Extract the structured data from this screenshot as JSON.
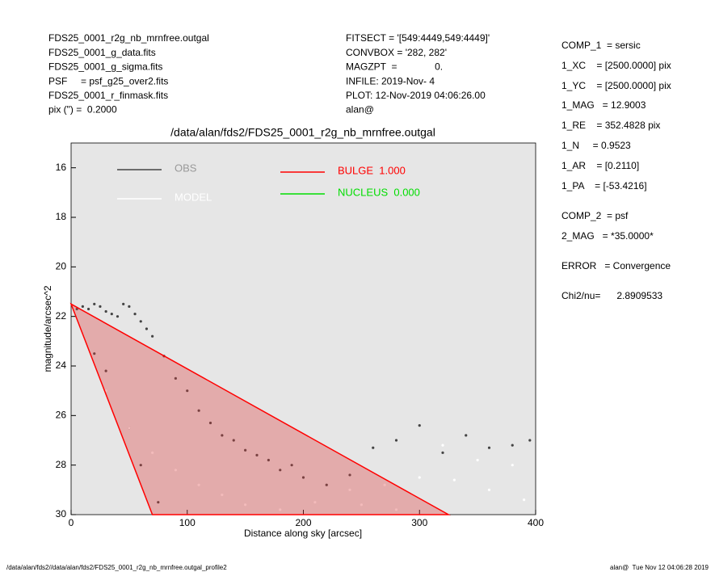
{
  "info": {
    "left": [
      "FDS25_0001_r2g_nb_mrnfree.outgal",
      "FDS25_0001_g_data.fits",
      "FDS25_0001_g_sigma.fits",
      "PSF     = psf_g25_over2.fits",
      "FDS25_0001_r_finmask.fits",
      "pix (\") =  0.2000"
    ],
    "middle": [
      "FITSECT = '[549:4449,549:4449]'",
      "CONVBOX = '282, 282'",
      "MAGZPT  =              0.",
      "INFILE: 2019-Nov- 4",
      "PLOT: 12-Nov-2019 04:06:26.00",
      "alan@"
    ],
    "right": [
      "COMP_1  = sersic",
      "1_XC    = [2500.0000] pix",
      "1_YC    = [2500.0000] pix",
      "1_MAG   = 12.9003",
      "1_RE    = 352.4828 pix",
      "1_N     = 0.9523",
      "1_AR    = [0.2110]",
      "1_PA    = [-53.4216]",
      "COMP_2  = psf",
      "2_MAG   = *35.0000*",
      "ERROR   = Convergence",
      "Chi2/nu=      2.8909533"
    ],
    "footer_left": "/data/alan/fds2//data/alan/fds2/FDS25_0001_r2g_nb_mrnfree.outgal_profile2",
    "footer_right": "alan@  Tue Nov 12 04:06:28 2019"
  },
  "chart_data": {
    "type": "scatter",
    "title": "/data/alan/fds2/FDS25_0001_r2g_nb_mrnfree.outgal",
    "x_label": "Distance along sky [arcsec]",
    "y_label": "magnitude/arcsec^2",
    "xlim": [
      0,
      400
    ],
    "xticks": [
      0,
      100,
      200,
      300,
      400
    ],
    "ylim": [
      30,
      15
    ],
    "yticks": [
      16,
      18,
      20,
      22,
      24,
      26,
      28,
      30
    ],
    "series": [
      {
        "name": "OBS",
        "color": "#444444",
        "x": [
          5,
          10,
          15,
          20,
          25,
          30,
          35,
          40,
          45,
          50,
          55,
          60,
          65,
          70,
          80,
          90,
          100,
          110,
          120,
          130,
          140,
          150,
          160,
          170,
          180,
          190,
          200,
          220,
          240,
          260,
          280,
          300,
          320,
          340,
          360,
          380,
          395,
          20,
          30,
          50,
          60,
          75
        ],
        "values": [
          21.7,
          21.6,
          21.7,
          21.5,
          21.6,
          21.8,
          21.9,
          22.0,
          21.5,
          21.6,
          21.9,
          22.2,
          22.5,
          22.8,
          23.6,
          24.5,
          25.0,
          25.8,
          26.3,
          26.8,
          27.0,
          27.4,
          27.6,
          27.8,
          28.2,
          28.0,
          28.5,
          28.8,
          28.4,
          27.3,
          27.0,
          26.4,
          27.5,
          26.8,
          27.3,
          27.2,
          27.0,
          23.5,
          24.2,
          26.5,
          28.0,
          29.5
        ]
      },
      {
        "name": "MODEL",
        "color": "#ffffff",
        "x": [
          30,
          50,
          70,
          90,
          110,
          130,
          150,
          180,
          210,
          240,
          270,
          300,
          330,
          360,
          390,
          320,
          350,
          380,
          250,
          280
        ],
        "values": [
          25,
          26.5,
          27.5,
          28.2,
          28.8,
          29.2,
          29.6,
          29.8,
          29.5,
          29.0,
          28.8,
          28.5,
          28.6,
          29.0,
          29.4,
          27.2,
          27.8,
          28.0,
          29.6,
          29.8
        ]
      },
      {
        "name": "BULGE  1.000",
        "color": "#ff0000",
        "x": [
          0,
          325,
          70
        ],
        "values": [
          21.5,
          30,
          30
        ]
      },
      {
        "name": "NUCLEUS  0.000",
        "color": "#00dd00",
        "x": [],
        "values": []
      }
    ]
  }
}
